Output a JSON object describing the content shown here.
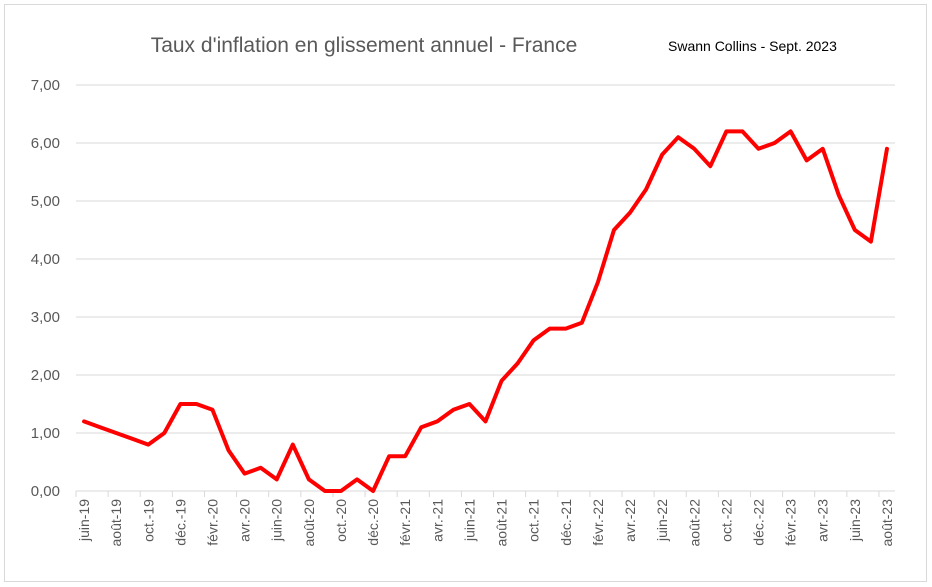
{
  "chart_data": {
    "type": "line",
    "title": "Taux d'inflation en glissement annuel - France",
    "annotation": "Swann Collins - Sept. 2023",
    "xlabel": "",
    "ylabel": "",
    "ylim": [
      0,
      7
    ],
    "yticks": [
      "0,00",
      "1,00",
      "2,00",
      "3,00",
      "4,00",
      "5,00",
      "6,00",
      "7,00"
    ],
    "grid": true,
    "legend": "none",
    "color": "#ff0000",
    "x_tick_labels": [
      "juin-19",
      "août-19",
      "oct.-19",
      "déc.-19",
      "févr.-20",
      "avr.-20",
      "juin-20",
      "août-20",
      "oct.-20",
      "déc.-20",
      "févr.-21",
      "avr.-21",
      "juin-21",
      "août-21",
      "oct.-21",
      "déc.-21",
      "févr.-22",
      "avr.-22",
      "juin-22",
      "août-22",
      "oct.-22",
      "déc.-22",
      "févr.-23",
      "avr.-23",
      "juin-23",
      "août-23"
    ],
    "series": [
      {
        "name": "Inflation",
        "values": [
          1.2,
          1.1,
          1.0,
          0.9,
          0.8,
          1.0,
          1.5,
          1.5,
          1.4,
          0.7,
          0.3,
          0.4,
          0.2,
          0.8,
          0.2,
          0.0,
          0.0,
          0.2,
          0.0,
          0.6,
          0.6,
          1.1,
          1.2,
          1.4,
          1.5,
          1.2,
          1.9,
          2.2,
          2.6,
          2.8,
          2.8,
          2.9,
          3.6,
          4.5,
          4.8,
          5.2,
          5.8,
          6.1,
          5.9,
          5.6,
          6.2,
          6.2,
          5.9,
          6.0,
          6.2,
          5.7,
          5.9,
          5.1,
          4.5,
          4.3,
          5.9
        ]
      }
    ]
  }
}
